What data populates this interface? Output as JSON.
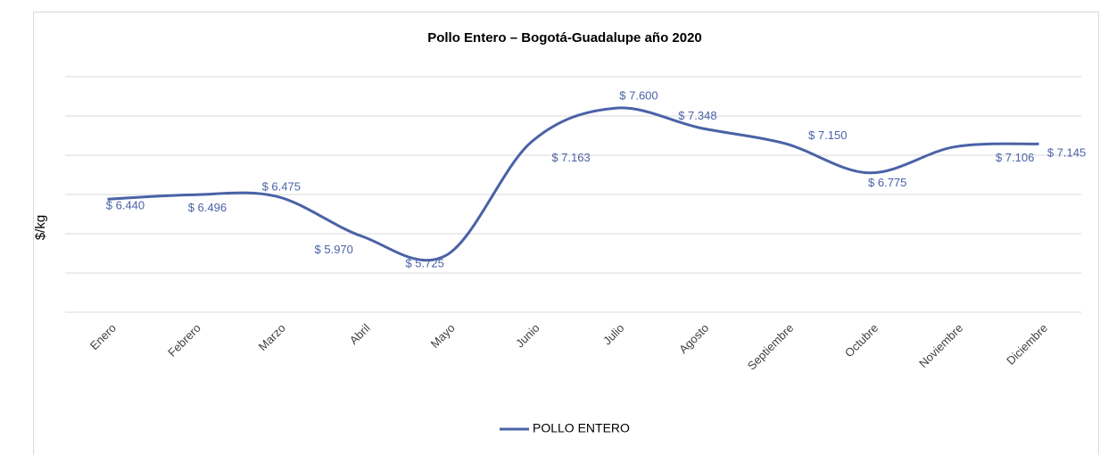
{
  "chart_data": {
    "type": "line",
    "title": "Pollo Entero – Bogotá-Guadalupe año 2020",
    "y_label": "$/kg",
    "categories": [
      "Enero",
      "Febrero",
      "Marzo",
      "Abril",
      "Mayo",
      "Junio",
      "Julio",
      "Agosto",
      "Septiembre",
      "Octubre",
      "Noviembre",
      "Diciembre"
    ],
    "series": [
      {
        "name": "POLLO ENTERO",
        "color": "#4a62a6",
        "values": [
          6440,
          6496,
          6475,
          5970,
          5725,
          7163,
          7600,
          7348,
          7150,
          6775,
          7106,
          7145
        ],
        "value_labels": [
          "$ 6.440",
          "$ 6.496",
          "$ 6.475",
          "$ 5.970",
          "$ 5.725",
          "$ 7.163",
          "$ 7.600",
          "$ 7.348",
          "$ 7.150",
          "$ 6.775",
          "$ 7.106",
          "$ 7.145"
        ]
      }
    ],
    "ylim": [
      5000,
      8000
    ],
    "yticks": [
      5000,
      5500,
      6000,
      6500,
      7000,
      7500,
      8000
    ],
    "grid": true,
    "legend": "bottom",
    "smooth": true
  }
}
